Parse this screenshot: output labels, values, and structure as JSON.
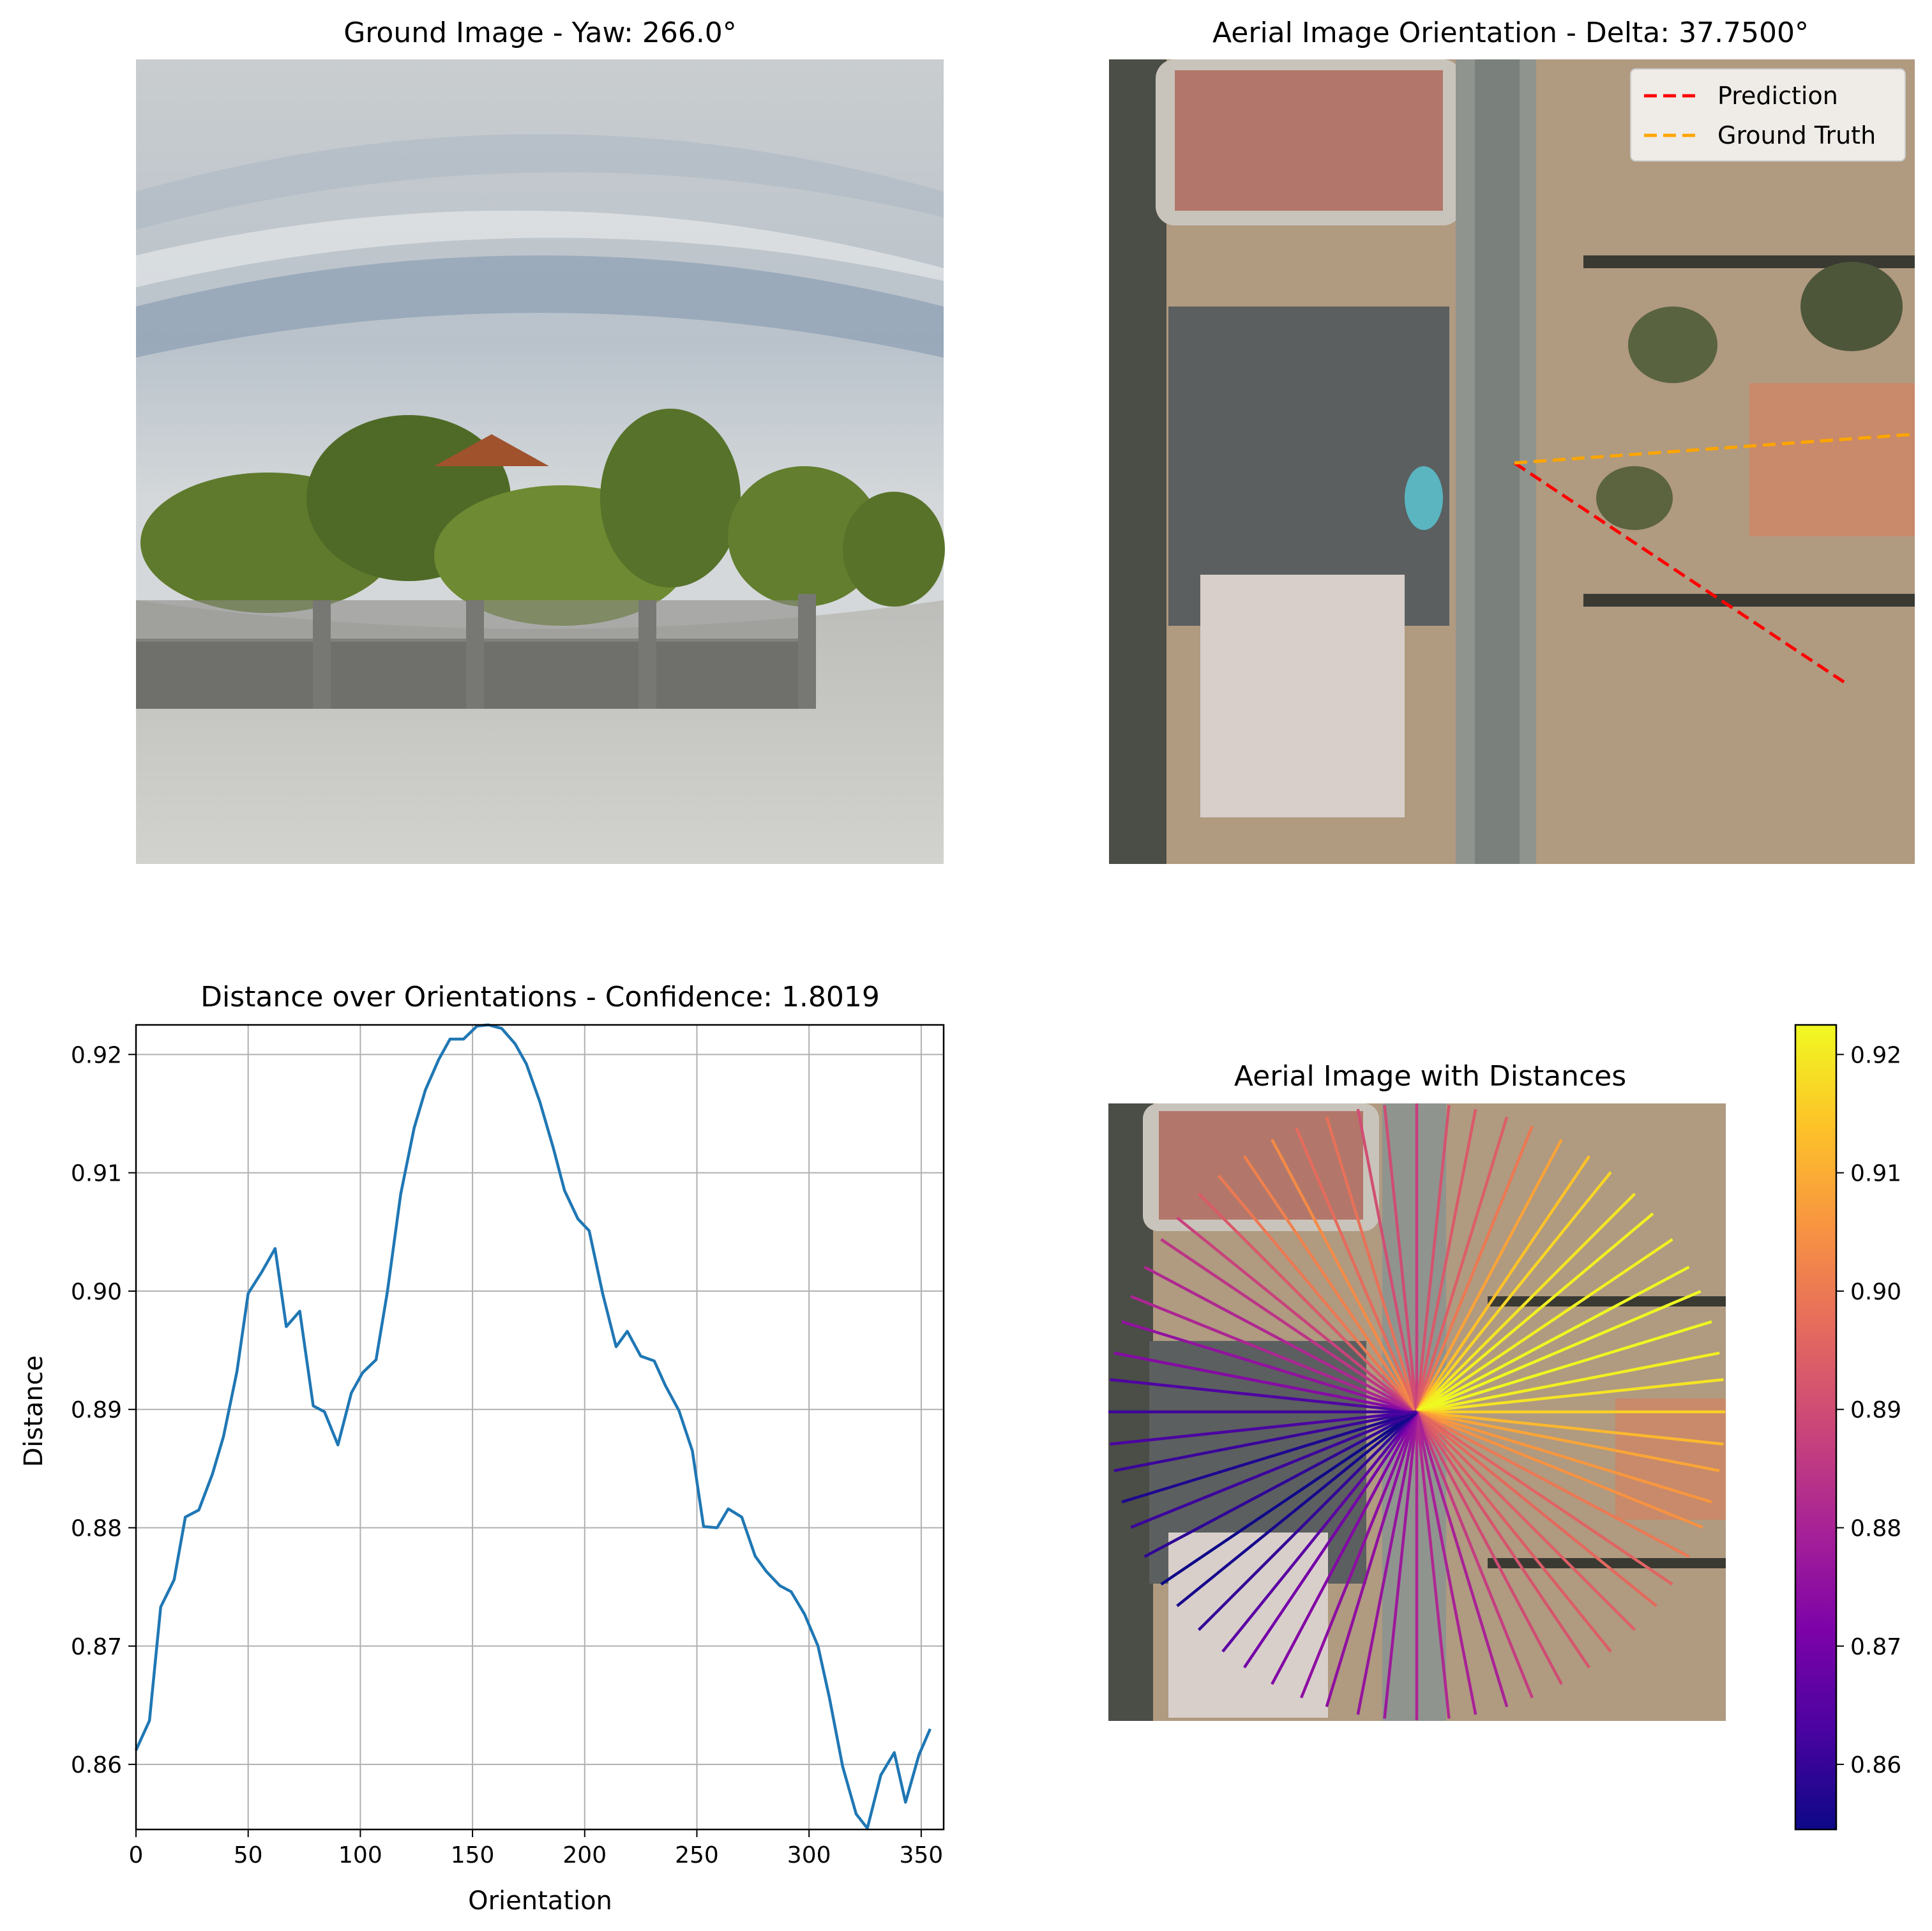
{
  "panels": {
    "ground": {
      "title": "Ground Image - Yaw: 266.0°"
    },
    "aerial": {
      "title": "Aerial Image Orientation - Delta: 37.7500°",
      "legend": [
        "Prediction",
        "Ground Truth"
      ],
      "prediction_color": "#ff0000",
      "ground_truth_color": "#ffa500"
    },
    "aerial_distances": {
      "title": "Aerial Image with Distances"
    }
  },
  "chart_data": [
    {
      "type": "line",
      "title": "Distance over Orientations - Confidence: 1.8019",
      "xlabel": "Orientation",
      "ylabel": "Distance",
      "xlim": [
        0,
        360
      ],
      "ylim": [
        0.8545,
        0.9225
      ],
      "xticks": [
        "0",
        "50",
        "100",
        "150",
        "200",
        "250",
        "300",
        "350"
      ],
      "yticks": [
        "0.86",
        "0.87",
        "0.88",
        "0.89",
        "0.90",
        "0.91",
        "0.92"
      ],
      "grid": true,
      "line_color": "#1f77b4",
      "x": [
        0,
        6,
        11,
        17,
        22,
        28,
        34,
        39,
        45,
        50,
        56,
        62,
        67,
        73,
        79,
        84,
        90,
        96,
        101,
        107,
        112,
        118,
        124,
        129,
        135,
        140,
        146,
        152,
        157,
        163,
        169,
        174,
        180,
        186,
        191,
        197,
        202,
        208,
        214,
        219,
        225,
        231,
        236,
        242,
        248,
        253,
        259,
        264,
        270,
        276,
        281,
        287,
        292,
        298,
        304,
        309,
        315,
        321,
        326,
        332,
        338,
        343,
        349,
        354
      ],
      "y": [
        0.8612,
        0.8637,
        0.8733,
        0.8756,
        0.8809,
        0.8815,
        0.8845,
        0.8877,
        0.8932,
        0.8998,
        0.9016,
        0.9036,
        0.897,
        0.8983,
        0.8903,
        0.8898,
        0.887,
        0.8914,
        0.8931,
        0.8942,
        0.8999,
        0.9082,
        0.9138,
        0.917,
        0.9196,
        0.9213,
        0.9213,
        0.9224,
        0.9225,
        0.9222,
        0.9209,
        0.9192,
        0.916,
        0.9121,
        0.9085,
        0.9061,
        0.9051,
        0.8998,
        0.8953,
        0.8966,
        0.8945,
        0.8941,
        0.892,
        0.8899,
        0.8865,
        0.8801,
        0.88,
        0.8816,
        0.8809,
        0.8776,
        0.8763,
        0.8751,
        0.8746,
        0.8727,
        0.87,
        0.8657,
        0.8598,
        0.8558,
        0.8546,
        0.8591,
        0.861,
        0.8568,
        0.8608,
        0.863
      ]
    },
    {
      "type": "heatmap",
      "title": "Aerial Image with Distances",
      "colorbar_ticks": [
        "0.86",
        "0.87",
        "0.88",
        "0.89",
        "0.90",
        "0.91",
        "0.92"
      ],
      "colorbar_range": [
        0.8545,
        0.9225
      ],
      "colormap": "plasma"
    }
  ]
}
